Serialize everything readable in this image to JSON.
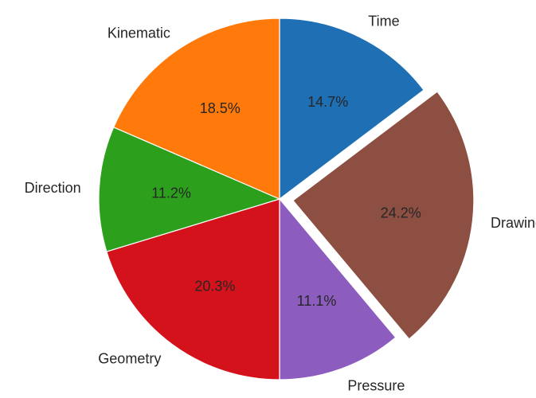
{
  "chart_data": {
    "type": "pie",
    "title": "",
    "categories": [
      "Time",
      "Drawing",
      "Pressure",
      "Geometry",
      "Direction",
      "Kinematic"
    ],
    "values": [
      14.7,
      24.2,
      11.1,
      20.3,
      11.2,
      18.5
    ],
    "percent_labels": [
      "14.7%",
      "24.2%",
      "11.1%",
      "20.3%",
      "11.2%",
      "18.5%"
    ],
    "colors": [
      "#1f6fb4",
      "#8c4f42",
      "#8c5cbf",
      "#d3121c",
      "#2ca01c",
      "#ff7a0a"
    ],
    "exploded": [
      "Drawing"
    ],
    "start_angle_deg": 90,
    "direction": "clockwise",
    "legend": "none"
  }
}
